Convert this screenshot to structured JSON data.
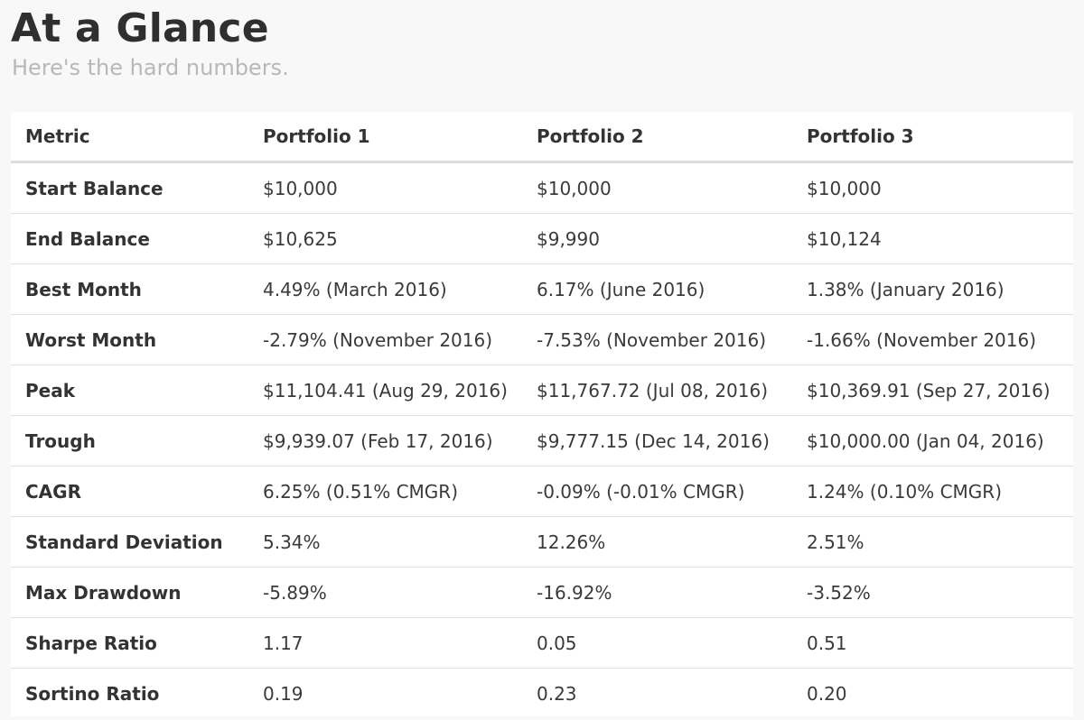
{
  "header": {
    "title": "At a Glance",
    "subtitle": "Here's the hard numbers."
  },
  "table": {
    "columns": [
      "Metric",
      "Portfolio 1",
      "Portfolio 2",
      "Portfolio 3"
    ],
    "rows": [
      [
        "Start Balance",
        "$10,000",
        "$10,000",
        "$10,000"
      ],
      [
        "End Balance",
        "$10,625",
        "$9,990",
        "$10,124"
      ],
      [
        "Best Month",
        "4.49% (March 2016)",
        "6.17% (June 2016)",
        "1.38% (January 2016)"
      ],
      [
        "Worst Month",
        "-2.79% (November 2016)",
        "-7.53% (November 2016)",
        "-1.66% (November 2016)"
      ],
      [
        "Peak",
        "$11,104.41 (Aug 29, 2016)",
        "$11,767.72 (Jul 08, 2016)",
        "$10,369.91 (Sep 27, 2016)"
      ],
      [
        "Trough",
        "$9,939.07 (Feb 17, 2016)",
        "$9,777.15 (Dec 14, 2016)",
        "$10,000.00 (Jan 04, 2016)"
      ],
      [
        "CAGR",
        "6.25% (0.51% CMGR)",
        "-0.09% (-0.01% CMGR)",
        "1.24% (0.10% CMGR)"
      ],
      [
        "Standard Deviation",
        "5.34%",
        "12.26%",
        "2.51%"
      ],
      [
        "Max Drawdown",
        "-5.89%",
        "-16.92%",
        "-3.52%"
      ],
      [
        "Sharpe Ratio",
        "1.17",
        "0.05",
        "0.51"
      ],
      [
        "Sortino Ratio",
        "0.19",
        "0.23",
        "0.20"
      ]
    ]
  }
}
